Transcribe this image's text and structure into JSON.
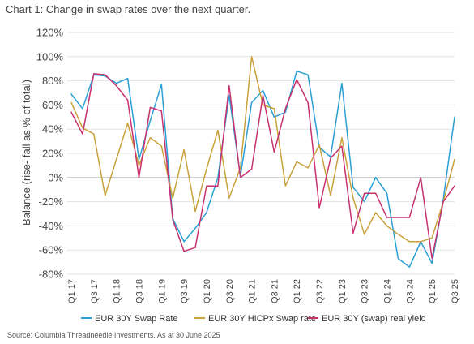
{
  "chart_data": {
    "type": "line",
    "title": "Chart 1: Change in swap rates over the next quarter.",
    "source": "Source: Columbia Threadneedle Investments. As at 30 June 2025",
    "ylabel": "Balance (rise- fall as % of total)",
    "xlabel": "",
    "ylim": [
      -80,
      120
    ],
    "yticks": [
      "120%",
      "100%",
      "80%",
      "60%",
      "40%",
      "20%",
      "0%",
      "-20%",
      "-40%",
      "-60%",
      "-80%"
    ],
    "ytick_values": [
      120,
      100,
      80,
      60,
      40,
      20,
      0,
      -20,
      -40,
      -60,
      -80
    ],
    "x": [
      "Q1 17",
      "Q2 17",
      "Q3 17",
      "Q4 17",
      "Q1 18",
      "Q2 18",
      "Q3 18",
      "Q4 18",
      "Q1 19",
      "Q2 19",
      "Q3 19",
      "Q4 19",
      "Q1 20",
      "Q2 20",
      "Q3 20",
      "Q4 20",
      "Q1 21",
      "Q2 21",
      "Q3 21",
      "Q4 21",
      "Q1 22",
      "Q2 22",
      "Q3 22",
      "Q4 22",
      "Q1 23",
      "Q2 23",
      "Q3 23",
      "Q4 23",
      "Q1 24",
      "Q2 24",
      "Q3 24",
      "Q4 24",
      "Q1 25",
      "Q2 25",
      "Q3 25"
    ],
    "xtick_labels": [
      "Q1 17",
      "Q3 17",
      "Q1 18",
      "Q3 18",
      "Q1 19",
      "Q3 19",
      "Q1 20",
      "Q3 20",
      "Q1 21",
      "Q3 21",
      "Q1 22",
      "Q3 22",
      "Q1 23",
      "Q3 23",
      "Q1 24",
      "Q3 24",
      "Q1 25",
      "Q3 25"
    ],
    "grid": "horizontal",
    "legend_position": "bottom",
    "series": [
      {
        "name": "EUR 30Y Swap Rate",
        "color": "#2a9fd6",
        "values": [
          69,
          57,
          85,
          84,
          78,
          82,
          15,
          47,
          77,
          -34,
          -53,
          -42,
          -29,
          0,
          68,
          1,
          62,
          72,
          50,
          54,
          88,
          85,
          25,
          17,
          78,
          -8,
          -20,
          0,
          -13,
          -67,
          -74,
          -53,
          -71,
          -18,
          50
        ]
      },
      {
        "name": "EUR 30Y HICPx Swap rate",
        "color": "#c9a13b",
        "values": [
          62,
          41,
          36,
          -15,
          15,
          45,
          10,
          33,
          26,
          -17,
          23,
          -28,
          7,
          39,
          -17,
          8,
          100,
          60,
          57,
          -7,
          13,
          8,
          27,
          -15,
          33,
          -17,
          -47,
          -29,
          -40,
          -47,
          -53,
          -53,
          -50,
          -20,
          15
        ]
      },
      {
        "name": "EUR 30Y (swap) real yield",
        "color": "#c7326e",
        "values": [
          54,
          36,
          86,
          85,
          76,
          64,
          0,
          58,
          55,
          -35,
          -61,
          -58,
          -7,
          -7,
          76,
          0,
          7,
          68,
          21,
          57,
          81,
          62,
          -25,
          16,
          26,
          -46,
          -13,
          -13,
          -33,
          -33,
          -33,
          0,
          -67,
          -20,
          -7
        ]
      }
    ]
  }
}
